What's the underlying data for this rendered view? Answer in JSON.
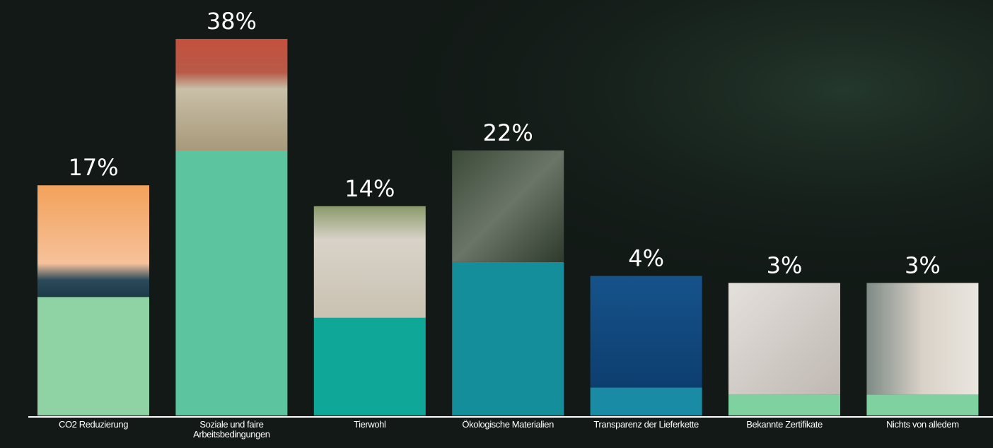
{
  "chart_data": {
    "type": "bar",
    "categories": [
      "CO2 Reduzierung",
      "Soziale und faire Arbeitsbedingungen",
      "Tierwohl",
      "Ökologische Materialien",
      "Transparenz der Lieferkette",
      "Bekannte Zertifikate",
      "Nichts von alledem"
    ],
    "values": [
      17,
      38,
      14,
      22,
      4,
      3,
      3
    ],
    "value_labels": [
      "17%",
      "38%",
      "14%",
      "22%",
      "4%",
      "3%",
      "3%"
    ],
    "colors": [
      "#8fd3a4",
      "#5cc59f",
      "#0fa898",
      "#138e9a",
      "#1a8ba5",
      "#7fd2a0",
      "#7fd2a0"
    ]
  }
}
